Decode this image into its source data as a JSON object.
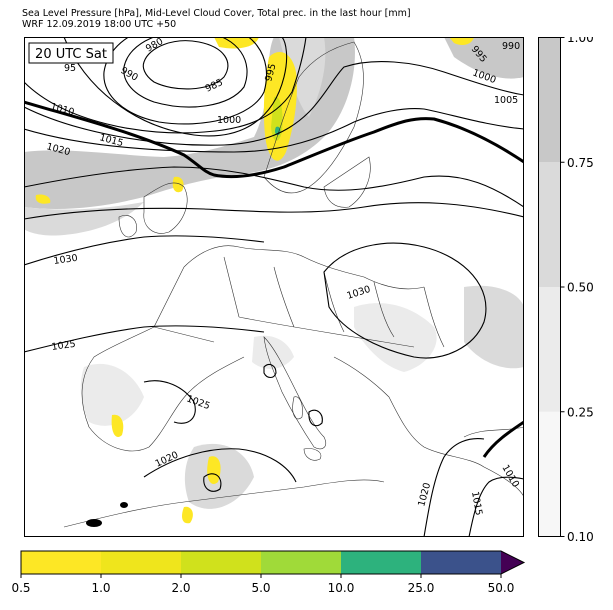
{
  "header": {
    "title_line1": "Sea Level Pressure [hPa], Mid-Level Cloud Cover, Total prec. in the last hour [mm]",
    "title_line2": "WRF 12.09.2019 18:00 UTC +50"
  },
  "map": {
    "time_stamp": "20 UTC Sat",
    "isobar_labels": [
      "980",
      "985",
      "990",
      "995",
      "1000",
      "1005",
      "1010",
      "1015",
      "1020",
      "1025",
      "1030"
    ],
    "label_values": {
      "l980": "980",
      "l985": "985",
      "l990a": "990",
      "l990b": "990",
      "l995a": "995",
      "l995b": "995",
      "l1000a": "1000",
      "l1000b": "1000",
      "l1005": "1005",
      "l1010a": "1010",
      "l1010b": "1010",
      "l1015a": "1015",
      "l1015b": "1015",
      "l1020a": "1020",
      "l1020b": "1020",
      "l1020c": "1020",
      "l1025a": "1025",
      "l1025b": "1025",
      "l1030a": "1030",
      "l1030b": "1030",
      "l95": "95"
    },
    "colors": {
      "cloud_high": "#c8c8c8",
      "cloud_mid": "#dadada",
      "cloud_low": "#ebebeb",
      "precip_light": "#fde725",
      "precip_mid": "#d0e11c",
      "coastline": "#333333",
      "isobar": "#000000"
    }
  },
  "cloud_colorbar": {
    "ticks": [
      "0.10",
      "0.25",
      "0.50",
      "0.75",
      "1.00"
    ],
    "levels": [
      0.1,
      0.25,
      0.5,
      0.75,
      1.0
    ],
    "colors": [
      "#f7f7f7",
      "#ebebeb",
      "#dadada",
      "#c8c8c8"
    ]
  },
  "precip_colorbar": {
    "ticks": [
      "0.5",
      "1.0",
      "2.0",
      "5.0",
      "10.0",
      "25.0",
      "50.0"
    ],
    "levels": [
      0.5,
      1.0,
      2.0,
      5.0,
      10.0,
      25.0,
      50.0
    ],
    "colors": [
      "#fde725",
      "#efe51c",
      "#d0e11c",
      "#a0da39",
      "#2db27d",
      "#3b528b"
    ],
    "extend_color": "#440154"
  }
}
